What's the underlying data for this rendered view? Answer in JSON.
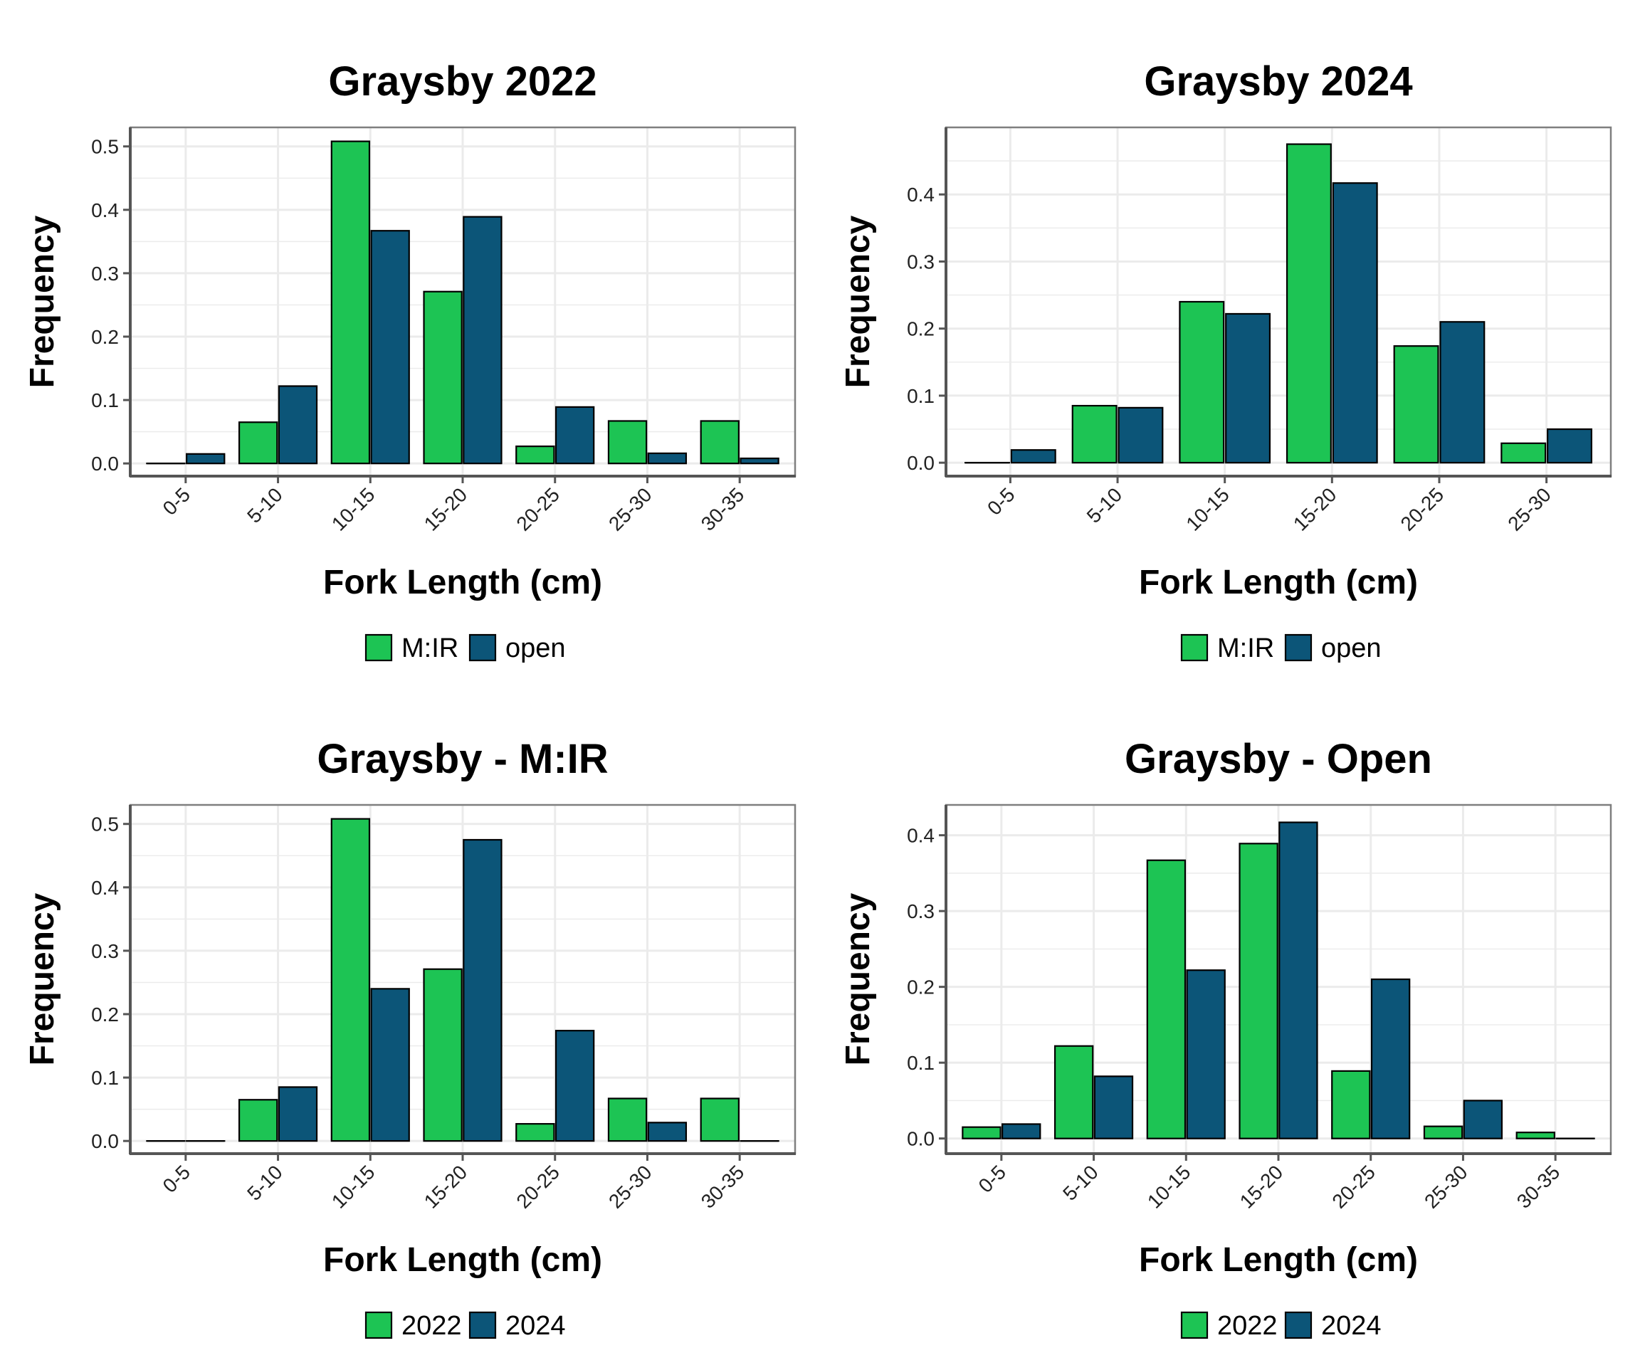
{
  "colors": {
    "series_a": "#1dc454",
    "series_b": "#0c5578",
    "grid": "#ebebeb",
    "panel_border": "#7f7f7f",
    "axis_line": "#555555",
    "bar_outline": "#000000"
  },
  "chart_data": [
    {
      "type": "bar",
      "title": "Graysby 2022",
      "xlabel": "Fork Length (cm)",
      "ylabel": "Frequency",
      "categories": [
        "0-5",
        "5-10",
        "10-15",
        "15-20",
        "20-25",
        "25-30",
        "30-35"
      ],
      "series": [
        {
          "name": "M:IR",
          "values": [
            0.0,
            0.065,
            0.508,
            0.271,
            0.027,
            0.067,
            0.067
          ]
        },
        {
          "name": "open",
          "values": [
            0.015,
            0.122,
            0.367,
            0.389,
            0.089,
            0.016,
            0.008
          ]
        }
      ],
      "ylim": [
        -0.02,
        0.53
      ],
      "yticks": [
        0.0,
        0.1,
        0.2,
        0.3,
        0.4,
        0.5
      ],
      "ytick_labels": [
        "0.0",
        "0.1",
        "0.2",
        "0.3",
        "0.4",
        "0.5"
      ],
      "grid": true,
      "legend": "bottom"
    },
    {
      "type": "bar",
      "title": "Graysby 2024",
      "xlabel": "Fork Length (cm)",
      "ylabel": "Frequency",
      "categories": [
        "0-5",
        "5-10",
        "10-15",
        "15-20",
        "20-25",
        "25-30"
      ],
      "series": [
        {
          "name": "M:IR",
          "values": [
            0.0,
            0.085,
            0.24,
            0.475,
            0.174,
            0.029
          ]
        },
        {
          "name": "open",
          "values": [
            0.019,
            0.082,
            0.222,
            0.417,
            0.21,
            0.05
          ]
        }
      ],
      "ylim": [
        -0.02,
        0.5
      ],
      "yticks": [
        0.0,
        0.1,
        0.2,
        0.3,
        0.4
      ],
      "ytick_labels": [
        "0.0",
        "0.1",
        "0.2",
        "0.3",
        "0.4"
      ],
      "grid": true,
      "legend": "bottom"
    },
    {
      "type": "bar",
      "title": "Graysby - M:IR",
      "xlabel": "Fork Length (cm)",
      "ylabel": "Frequency",
      "categories": [
        "0-5",
        "5-10",
        "10-15",
        "15-20",
        "20-25",
        "25-30",
        "30-35"
      ],
      "series": [
        {
          "name": "2022",
          "values": [
            0.0,
            0.065,
            0.508,
            0.271,
            0.027,
            0.067,
            0.067
          ]
        },
        {
          "name": "2024",
          "values": [
            0.0,
            0.085,
            0.24,
            0.475,
            0.174,
            0.029,
            0.0
          ]
        }
      ],
      "ylim": [
        -0.02,
        0.53
      ],
      "yticks": [
        0.0,
        0.1,
        0.2,
        0.3,
        0.4,
        0.5
      ],
      "ytick_labels": [
        "0.0",
        "0.1",
        "0.2",
        "0.3",
        "0.4",
        "0.5"
      ],
      "grid": true,
      "legend": "bottom"
    },
    {
      "type": "bar",
      "title": "Graysby - Open",
      "xlabel": "Fork Length (cm)",
      "ylabel": "Frequency",
      "categories": [
        "0-5",
        "5-10",
        "10-15",
        "15-20",
        "20-25",
        "25-30",
        "30-35"
      ],
      "series": [
        {
          "name": "2022",
          "values": [
            0.015,
            0.122,
            0.367,
            0.389,
            0.089,
            0.016,
            0.008
          ]
        },
        {
          "name": "2024",
          "values": [
            0.019,
            0.082,
            0.222,
            0.417,
            0.21,
            0.05,
            0.0
          ]
        }
      ],
      "ylim": [
        -0.02,
        0.44
      ],
      "yticks": [
        0.0,
        0.1,
        0.2,
        0.3,
        0.4
      ],
      "ytick_labels": [
        "0.0",
        "0.1",
        "0.2",
        "0.3",
        "0.4"
      ],
      "grid": true,
      "legend": "bottom"
    }
  ]
}
